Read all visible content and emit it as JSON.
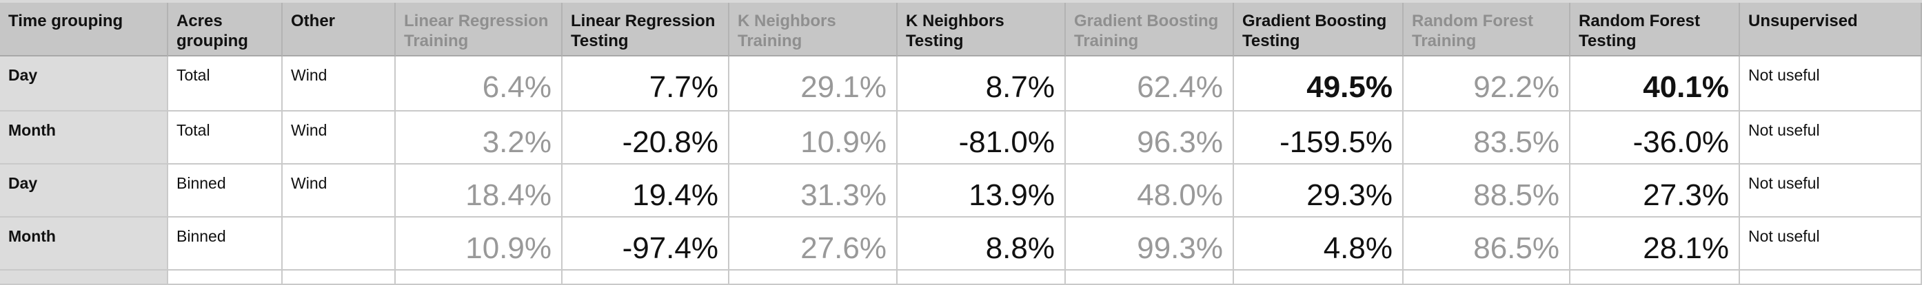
{
  "table": {
    "headers": [
      {
        "label": "Time grouping",
        "muted": false
      },
      {
        "label": "Acres grouping",
        "muted": false
      },
      {
        "label": "Other",
        "muted": false
      },
      {
        "label": "Linear Regression Training",
        "muted": true
      },
      {
        "label": "Linear Regression Testing",
        "muted": false
      },
      {
        "label": "K Neighbors Training",
        "muted": true
      },
      {
        "label": "K Neighbors Testing",
        "muted": false
      },
      {
        "label": "Gradient Boosting Training",
        "muted": true
      },
      {
        "label": "Gradient Boosting Testing",
        "muted": false
      },
      {
        "label": "Random Forest Training",
        "muted": true
      },
      {
        "label": "Random Forest Testing",
        "muted": false
      },
      {
        "label": "Unsupervised",
        "muted": false
      }
    ],
    "rows": [
      {
        "time": "Day",
        "acres": "Total",
        "other": "Wind",
        "lr_train": "6.4%",
        "lr_test": "7.7%",
        "kn_train": "29.1%",
        "kn_test": "8.7%",
        "gb_train": "62.4%",
        "gb_test": "49.5%",
        "rf_train": "92.2%",
        "rf_test": "40.1%",
        "unsupervised": "Not useful"
      },
      {
        "time": "Month",
        "acres": "Total",
        "other": "Wind",
        "lr_train": "3.2%",
        "lr_test": "-20.8%",
        "kn_train": "10.9%",
        "kn_test": "-81.0%",
        "gb_train": "96.3%",
        "gb_test": "-159.5%",
        "rf_train": "83.5%",
        "rf_test": "-36.0%",
        "unsupervised": "Not useful"
      },
      {
        "time": "Day",
        "acres": "Binned",
        "other": "Wind",
        "lr_train": "18.4%",
        "lr_test": "19.4%",
        "kn_train": "31.3%",
        "kn_test": "13.9%",
        "gb_train": "48.0%",
        "gb_test": "29.3%",
        "rf_train": "88.5%",
        "rf_test": "27.3%",
        "unsupervised": "Not useful"
      },
      {
        "time": "Month",
        "acres": "Binned",
        "other": "",
        "lr_train": "10.9%",
        "lr_test": "-97.4%",
        "kn_train": "27.6%",
        "kn_test": "8.8%",
        "gb_train": "99.3%",
        "gb_test": "4.8%",
        "rf_train": "86.5%",
        "rf_test": "28.1%",
        "unsupervised": "Not useful"
      }
    ],
    "bold_cells": [
      "rows.0.gb_test",
      "rows.0.rf_test"
    ],
    "colors": {
      "header_bg": "#c6c6c6",
      "rowhead_bg": "#dcdcdc",
      "muted_text": "#999999",
      "grid_line": "#c9c9c9"
    }
  }
}
